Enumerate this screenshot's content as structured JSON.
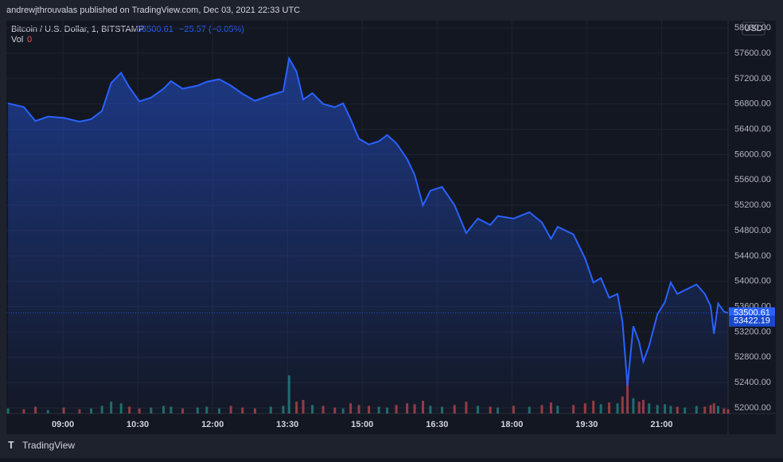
{
  "header": {
    "publisher": "andrewjthrouvalas published on TradingView.com, Dec 03, 2021 22:33 UTC"
  },
  "chart_data": {
    "type": "area",
    "legend": {
      "symbol": "Bitcoin / U.S. Dollar, 1, BITSTAMP",
      "price": "53500.61",
      "change": "−25.57 (−0.05%)",
      "volume_label": "Vol",
      "volume_value": "0"
    },
    "currency": "USD",
    "x": [
      474,
      493,
      507,
      522,
      541,
      560,
      574,
      587,
      598,
      610,
      620,
      632,
      646,
      661,
      670,
      684,
      702,
      713,
      728,
      742,
      756,
      771,
      790,
      805,
      812,
      821,
      829,
      840,
      853,
      867,
      877,
      886,
      896,
      908,
      920,
      930,
      941,
      954,
      963,
      973,
      982,
      996,
      1011,
      1025,
      1039,
      1054,
      1063,
      1082,
      1101,
      1116,
      1127,
      1135,
      1154,
      1168,
      1178,
      1187,
      1197,
      1207,
      1213,
      1219,
      1226,
      1233,
      1238,
      1245,
      1255,
      1264,
      1271,
      1279,
      1288,
      1302,
      1312,
      1319,
      1323,
      1328,
      1335,
      1340
    ],
    "series": [
      {
        "name": "Bitcoin / U.S. Dollar",
        "color": "#2962ff",
        "values": [
          56810,
          56750,
          56530,
          56600,
          56580,
          56520,
          56560,
          56690,
          57130,
          57290,
          57060,
          56840,
          56900,
          57040,
          57160,
          57040,
          57090,
          57150,
          57190,
          57090,
          56960,
          56850,
          56940,
          57000,
          57520,
          57310,
          56870,
          56970,
          56800,
          56750,
          56810,
          56560,
          56250,
          56160,
          56210,
          56310,
          56180,
          55930,
          55680,
          55200,
          55430,
          55490,
          55200,
          54760,
          54990,
          54890,
          55030,
          54990,
          55090,
          54930,
          54670,
          54860,
          54740,
          54360,
          53980,
          54050,
          53740,
          53800,
          53360,
          52350,
          53290,
          53040,
          52730,
          52980,
          53480,
          53670,
          53980,
          53800,
          53860,
          53950,
          53800,
          53610,
          53170,
          53650,
          53520,
          53500
        ]
      }
    ],
    "volume": {
      "up_color": "#26a69a",
      "down_color": "#ef5350",
      "values": [
        6,
        5,
        8,
        4,
        7,
        5,
        6,
        9,
        14,
        12,
        8,
        6,
        7,
        9,
        8,
        6,
        7,
        8,
        6,
        9,
        7,
        6,
        8,
        9,
        45,
        14,
        16,
        10,
        9,
        7,
        6,
        12,
        10,
        9,
        8,
        7,
        10,
        12,
        11,
        15,
        9,
        8,
        10,
        14,
        9,
        8,
        7,
        9,
        8,
        10,
        13,
        9,
        10,
        12,
        15,
        11,
        13,
        12,
        20,
        40,
        18,
        14,
        16,
        12,
        10,
        11,
        9,
        8,
        7,
        9,
        8,
        10,
        12,
        9,
        6,
        5
      ]
    },
    "xlim": [
      472,
      1340
    ],
    "xticks": [
      {
        "value": 540,
        "label": "09:00"
      },
      {
        "value": 630,
        "label": "10:30"
      },
      {
        "value": 720,
        "label": "12:00"
      },
      {
        "value": 810,
        "label": "13:30"
      },
      {
        "value": 900,
        "label": "15:00"
      },
      {
        "value": 990,
        "label": "16:30"
      },
      {
        "value": 1080,
        "label": "18:00"
      },
      {
        "value": 1170,
        "label": "19:30"
      },
      {
        "value": 1260,
        "label": "21:00"
      }
    ],
    "ylim": [
      51912,
      58115
    ],
    "yticks": [
      {
        "value": 52000,
        "label": "52000.00"
      },
      {
        "value": 52400,
        "label": "52400.00"
      },
      {
        "value": 52800,
        "label": "52800.00"
      },
      {
        "value": 53200,
        "label": "53200.00"
      },
      {
        "value": 53600,
        "label": "53600.00"
      },
      {
        "value": 54000,
        "label": "54000.00"
      },
      {
        "value": 54400,
        "label": "54400.00"
      },
      {
        "value": 54800,
        "label": "54800.00"
      },
      {
        "value": 55200,
        "label": "55200.00"
      },
      {
        "value": 55600,
        "label": "55600.00"
      },
      {
        "value": 56000,
        "label": "56000.00"
      },
      {
        "value": 56400,
        "label": "56400.00"
      },
      {
        "value": 56800,
        "label": "56800.00"
      },
      {
        "value": 57200,
        "label": "57200.00"
      },
      {
        "value": 57600,
        "label": "57600.00"
      },
      {
        "value": 58000,
        "label": "58000.00"
      }
    ],
    "last_price": {
      "value": 53500.61,
      "label": "53500.61"
    },
    "second_price": {
      "value": 53422.19,
      "label": "53422.19"
    },
    "grid": true
  },
  "footer": {
    "brand": "TradingView"
  }
}
